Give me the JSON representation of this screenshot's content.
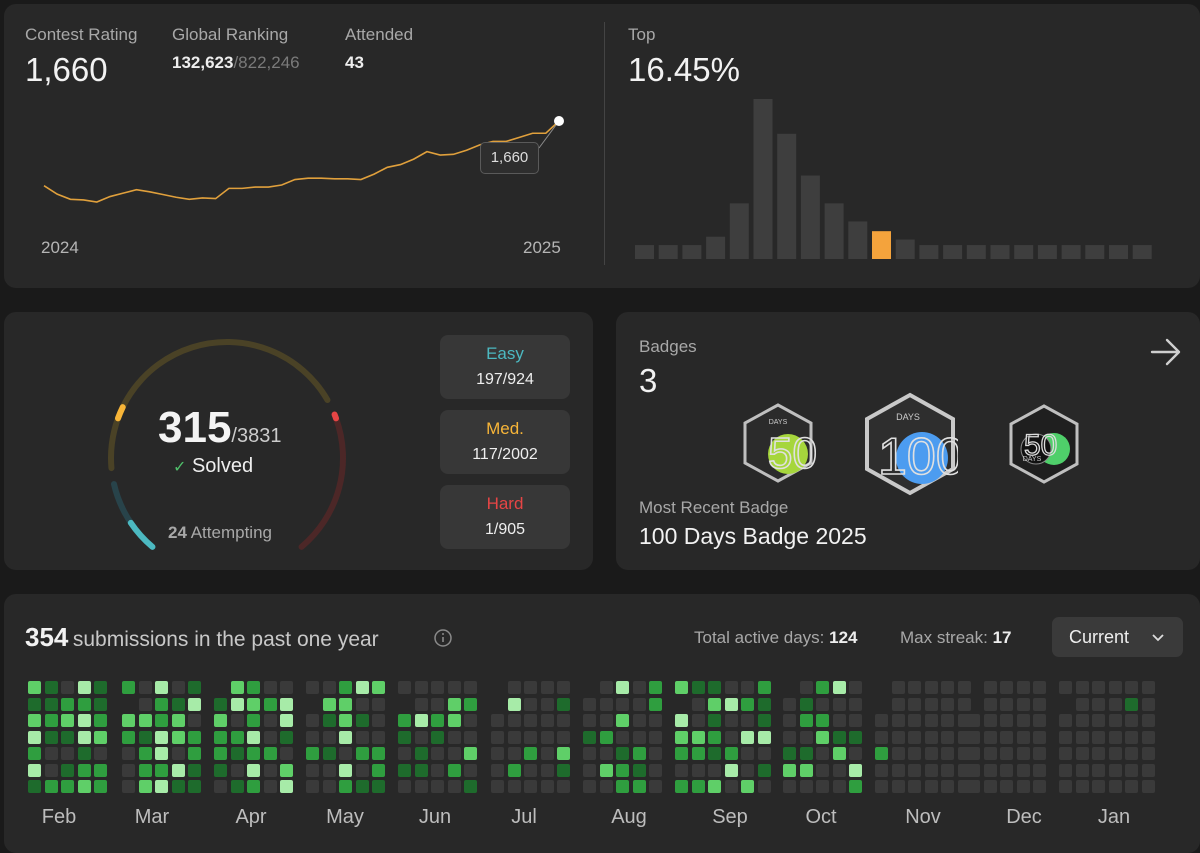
{
  "contest": {
    "rating_label": "Contest Rating",
    "rating": "1,660",
    "ranking_label": "Global Ranking",
    "ranking": "132,623",
    "ranking_total": "/822,246",
    "attended_label": "Attended",
    "attended": "43",
    "tooltip": "1,660",
    "year_start": "2024",
    "year_end": "2025",
    "top_label": "Top",
    "top_value": "16.45%"
  },
  "chart_data": [
    {
      "type": "line",
      "title": "",
      "x_labels": [
        "2024",
        "2025"
      ],
      "series": [
        {
          "values": [
            1470,
            1445,
            1430,
            1428,
            1422,
            1438,
            1448,
            1458,
            1452,
            1444,
            1436,
            1430,
            1434,
            1432,
            1462,
            1462,
            1466,
            1466,
            1472,
            1488,
            1492,
            1492,
            1490,
            1490,
            1488,
            1504,
            1524,
            1532,
            1548,
            1570,
            1560,
            1562,
            1574,
            1590,
            1600,
            1600,
            1612,
            1624,
            1624,
            1660
          ],
          "color": "#e0a03c"
        }
      ]
    },
    {
      "type": "bar",
      "title": "",
      "values": [
        10,
        10,
        10,
        16,
        40,
        115,
        90,
        60,
        40,
        27,
        20,
        14,
        10,
        10,
        10,
        10,
        10,
        10,
        10,
        10,
        10,
        10
      ],
      "highlight_index": 10,
      "colors": {
        "bar": "#3e3e3e",
        "highlight": "#f4a33c"
      }
    }
  ],
  "problems": {
    "solved": "315",
    "total": "/3831",
    "solved_label": "Solved",
    "check": "✓",
    "attempting_count": "24",
    "attempting_label": "Attempting",
    "easy_label": "Easy",
    "easy_value": "197/924",
    "med_label": "Med.",
    "med_value": "117/2002",
    "hard_label": "Hard",
    "hard_value": "1/905",
    "colors": {
      "easy": "#4cb9c1",
      "med": "#f7b538",
      "hard": "#e64545"
    }
  },
  "badges": {
    "label": "Badges",
    "count": "3",
    "recent_label": "Most Recent Badge",
    "recent_name": "100 Days Badge 2025",
    "arrow_icon": "arrow-right-icon",
    "items": [
      {
        "word": "DAYS",
        "digits": "50",
        "icon": "badge-50-days-icon"
      },
      {
        "word": "DAYS",
        "digits": "100",
        "icon": "badge-100-days-icon"
      },
      {
        "word": "DAYS",
        "digits": "50",
        "icon": "badge-50-days-dark-icon"
      }
    ]
  },
  "submissions": {
    "count": "354",
    "label": "submissions in the past one year",
    "info_icon": "info-icon",
    "active_label": "Total active days:",
    "active_value": "124",
    "streak_label": "Max streak:",
    "streak_value": "17",
    "selector": "Current",
    "months": [
      "Feb",
      "Mar",
      "Apr",
      "May",
      "Jun",
      "Jul",
      "Aug",
      "Sep",
      "Oct",
      "Nov",
      "Dec",
      "Jan"
    ],
    "colors": {
      "empty": "#3a3a3a",
      "level1": "#1e6b2c",
      "level2": "#2f9e3f",
      "level3": "#5fcf68",
      "level4": "#a7eba8"
    }
  }
}
